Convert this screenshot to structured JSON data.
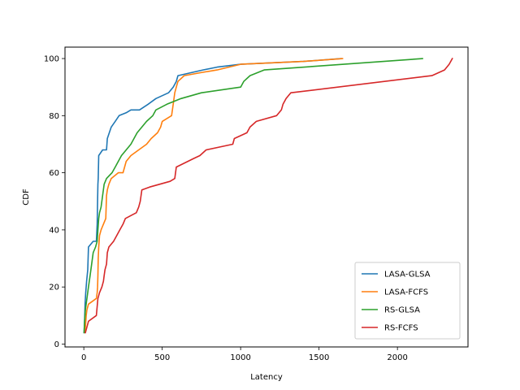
{
  "chart_data": {
    "type": "line",
    "title": "",
    "xlabel": "Latency",
    "ylabel": "CDF",
    "xlim": [
      -120,
      2450
    ],
    "ylim": [
      -1,
      104
    ],
    "xticks": [
      0,
      500,
      1000,
      1500,
      2000
    ],
    "yticks": [
      0,
      20,
      40,
      60,
      80,
      100
    ],
    "grid": false,
    "legend_position": "lower-right",
    "series": [
      {
        "name": "LASA-GLSA",
        "color": "#1f77b4",
        "points": [
          [
            2,
            4
          ],
          [
            5,
            8
          ],
          [
            8,
            14
          ],
          [
            12,
            18
          ],
          [
            18,
            22
          ],
          [
            25,
            26
          ],
          [
            30,
            34
          ],
          [
            60,
            36
          ],
          [
            80,
            36
          ],
          [
            85,
            42
          ],
          [
            88,
            50
          ],
          [
            90,
            56
          ],
          [
            92,
            58
          ],
          [
            95,
            66
          ],
          [
            120,
            68
          ],
          [
            145,
            68
          ],
          [
            150,
            72
          ],
          [
            175,
            76
          ],
          [
            200,
            78
          ],
          [
            225,
            80
          ],
          [
            270,
            81
          ],
          [
            300,
            82
          ],
          [
            355,
            82
          ],
          [
            410,
            84
          ],
          [
            460,
            86
          ],
          [
            540,
            88
          ],
          [
            570,
            90
          ],
          [
            590,
            92
          ],
          [
            600,
            94
          ],
          [
            680,
            95
          ],
          [
            760,
            96
          ],
          [
            850,
            97
          ],
          [
            1000,
            98
          ],
          [
            1200,
            98.5
          ],
          [
            1400,
            99
          ],
          [
            1640,
            100
          ]
        ]
      },
      {
        "name": "LASA-FCFS",
        "color": "#ff7f0e",
        "points": [
          [
            5,
            4
          ],
          [
            10,
            6
          ],
          [
            15,
            10
          ],
          [
            20,
            12
          ],
          [
            30,
            14
          ],
          [
            80,
            16
          ],
          [
            85,
            18
          ],
          [
            88,
            20
          ],
          [
            90,
            24
          ],
          [
            92,
            30
          ],
          [
            95,
            34
          ],
          [
            100,
            38
          ],
          [
            110,
            40
          ],
          [
            125,
            42
          ],
          [
            140,
            44
          ],
          [
            145,
            52
          ],
          [
            150,
            54
          ],
          [
            160,
            56
          ],
          [
            175,
            58
          ],
          [
            220,
            60
          ],
          [
            250,
            60
          ],
          [
            270,
            64
          ],
          [
            300,
            66
          ],
          [
            350,
            68
          ],
          [
            400,
            70
          ],
          [
            430,
            72
          ],
          [
            470,
            74
          ],
          [
            490,
            76
          ],
          [
            500,
            78
          ],
          [
            560,
            80
          ],
          [
            570,
            84
          ],
          [
            580,
            88
          ],
          [
            590,
            90
          ],
          [
            600,
            92
          ],
          [
            640,
            94
          ],
          [
            740,
            95
          ],
          [
            850,
            96
          ],
          [
            1000,
            98
          ],
          [
            1200,
            98.5
          ],
          [
            1400,
            99
          ],
          [
            1650,
            100
          ]
        ]
      },
      {
        "name": "RS-GLSA",
        "color": "#2ca02c",
        "points": [
          [
            2,
            4
          ],
          [
            5,
            8
          ],
          [
            10,
            12
          ],
          [
            20,
            16
          ],
          [
            30,
            20
          ],
          [
            40,
            24
          ],
          [
            50,
            28
          ],
          [
            60,
            32
          ],
          [
            75,
            34
          ],
          [
            85,
            36
          ],
          [
            90,
            40
          ],
          [
            95,
            44
          ],
          [
            100,
            46
          ],
          [
            110,
            48
          ],
          [
            120,
            52
          ],
          [
            130,
            56
          ],
          [
            145,
            58
          ],
          [
            180,
            60
          ],
          [
            200,
            62
          ],
          [
            220,
            64
          ],
          [
            240,
            66
          ],
          [
            270,
            68
          ],
          [
            300,
            70
          ],
          [
            320,
            72
          ],
          [
            340,
            74
          ],
          [
            370,
            76
          ],
          [
            400,
            78
          ],
          [
            440,
            80
          ],
          [
            460,
            82
          ],
          [
            530,
            84
          ],
          [
            620,
            86
          ],
          [
            750,
            88
          ],
          [
            1000,
            90
          ],
          [
            1020,
            92
          ],
          [
            1060,
            94
          ],
          [
            1150,
            96
          ],
          [
            2160,
            100
          ]
        ]
      },
      {
        "name": "RS-FCFS",
        "color": "#d62728",
        "points": [
          [
            10,
            4
          ],
          [
            20,
            6
          ],
          [
            30,
            8
          ],
          [
            80,
            10
          ],
          [
            90,
            16
          ],
          [
            100,
            18
          ],
          [
            115,
            20
          ],
          [
            125,
            22
          ],
          [
            130,
            24
          ],
          [
            135,
            26
          ],
          [
            145,
            28
          ],
          [
            150,
            32
          ],
          [
            160,
            34
          ],
          [
            190,
            36
          ],
          [
            210,
            38
          ],
          [
            230,
            40
          ],
          [
            250,
            42
          ],
          [
            265,
            44
          ],
          [
            300,
            45
          ],
          [
            335,
            46
          ],
          [
            350,
            48
          ],
          [
            360,
            50
          ],
          [
            370,
            54
          ],
          [
            420,
            55
          ],
          [
            550,
            57
          ],
          [
            580,
            58
          ],
          [
            590,
            62
          ],
          [
            700,
            65
          ],
          [
            740,
            66
          ],
          [
            780,
            68
          ],
          [
            950,
            70
          ],
          [
            960,
            72
          ],
          [
            1040,
            74
          ],
          [
            1060,
            76
          ],
          [
            1100,
            78
          ],
          [
            1230,
            80
          ],
          [
            1260,
            82
          ],
          [
            1270,
            84
          ],
          [
            1290,
            86
          ],
          [
            1320,
            88
          ],
          [
            2220,
            94
          ],
          [
            2300,
            96
          ],
          [
            2330,
            98
          ],
          [
            2350,
            100
          ]
        ]
      }
    ]
  }
}
